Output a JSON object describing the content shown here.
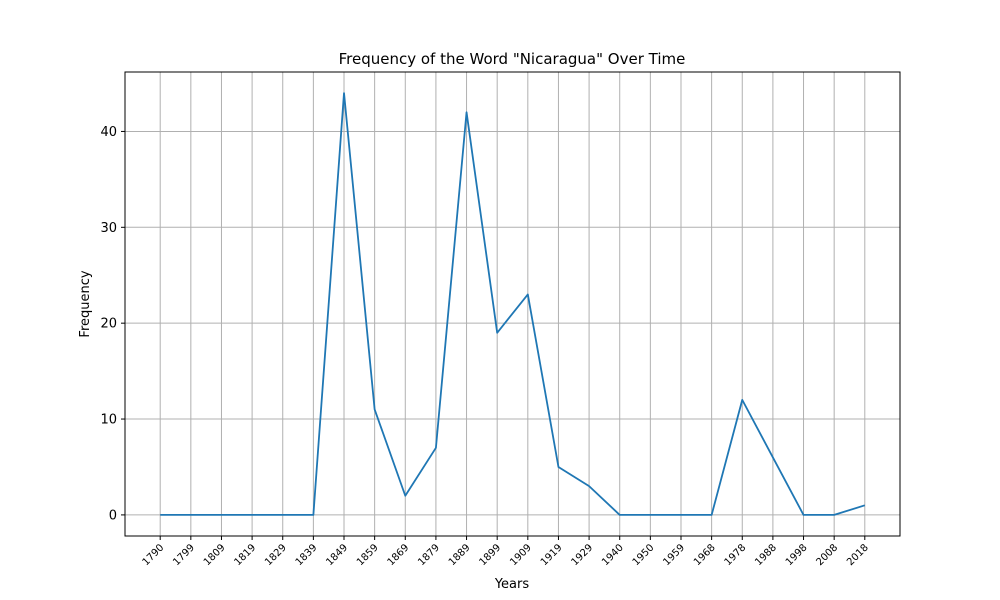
{
  "chart_data": {
    "type": "line",
    "title": "Frequency of the Word \"Nicaragua\" Over Time",
    "xlabel": "Years",
    "ylabel": "Frequency",
    "categories": [
      "1790",
      "1799",
      "1809",
      "1819",
      "1829",
      "1839",
      "1849",
      "1859",
      "1869",
      "1879",
      "1889",
      "1899",
      "1909",
      "1919",
      "1929",
      "1940",
      "1950",
      "1959",
      "1968",
      "1978",
      "1988",
      "1998",
      "2008",
      "2018"
    ],
    "values": [
      0,
      0,
      0,
      0,
      0,
      0,
      44,
      11,
      2,
      7,
      42,
      19,
      23,
      5,
      3,
      0,
      0,
      0,
      0,
      12,
      6,
      0,
      0,
      1
    ],
    "yticks": [
      0,
      10,
      20,
      30,
      40
    ],
    "ylim": [
      -2.2,
      46.2
    ],
    "grid": true,
    "color": "#1f77b4"
  }
}
